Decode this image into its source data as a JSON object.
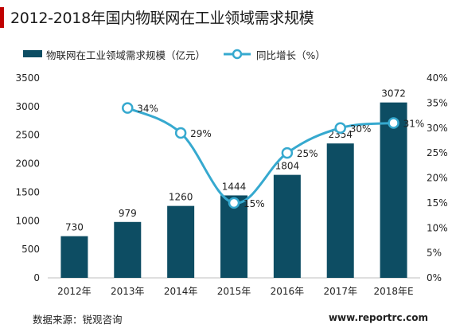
{
  "title": "2012-2018年国内物联网在工业领域需求规模",
  "colors": {
    "bar": "#0d4d63",
    "line": "#36a9cf",
    "accent": "#c00000"
  },
  "source": "数据来源：锐观咨询",
  "website": "www.reportrc.com",
  "chart_data": {
    "type": "bar",
    "categories": [
      "2012年",
      "2013年",
      "2014年",
      "2015年",
      "2016年",
      "2017年",
      "2018年E"
    ],
    "series": [
      {
        "name": "物联网在工业领域需求规模（亿元）",
        "type": "bar",
        "axis": "left",
        "values": [
          730,
          979,
          1260,
          1444,
          1804,
          2354,
          3072
        ]
      },
      {
        "name": "同比增长（%）",
        "type": "line",
        "axis": "right",
        "values": [
          null,
          34,
          29,
          15,
          25,
          30,
          31
        ]
      }
    ],
    "y_left": {
      "min": 0,
      "max": 3500,
      "step": 500,
      "ticks": [
        "0",
        "500",
        "1000",
        "1500",
        "2000",
        "2500",
        "3000",
        "3500"
      ]
    },
    "y_right": {
      "min": 0,
      "max": 40,
      "step": 5,
      "ticks": [
        "0%",
        "5%",
        "10%",
        "15%",
        "20%",
        "25%",
        "30%",
        "35%",
        "40%"
      ]
    },
    "bar_labels": [
      "730",
      "979",
      "1260",
      "1444",
      "1804",
      "2354",
      "3072"
    ],
    "line_labels": [
      "",
      "34%",
      "29%",
      "15%",
      "25%",
      "30%",
      "31%"
    ],
    "grid": false,
    "legend_position": "top"
  }
}
